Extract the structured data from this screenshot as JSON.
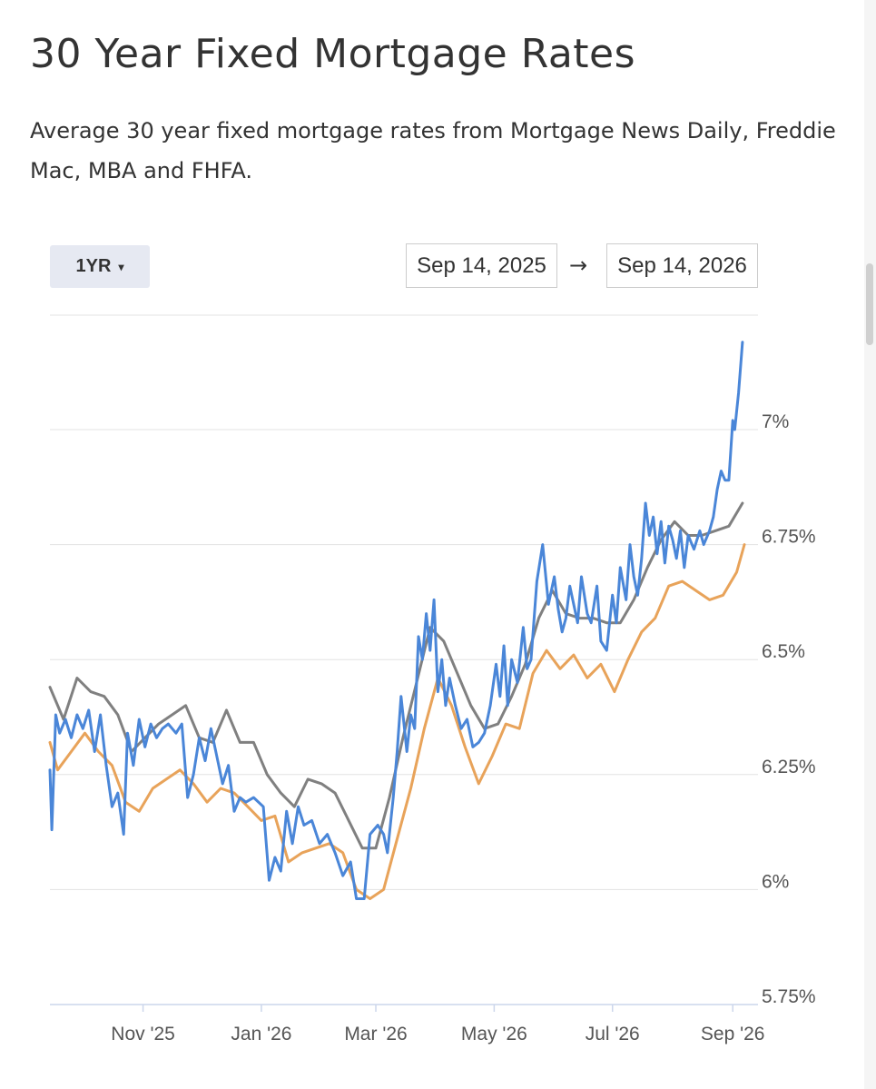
{
  "header": {
    "title": "30 Year Fixed Mortgage Rates",
    "subtitle": "Average 30 year fixed mortgage rates from Mortgage News Daily, Freddie Mac, MBA and FHFA."
  },
  "controls": {
    "range_label": "1YR",
    "range_caret": "▾",
    "date_from": "Sep 14, 2025",
    "date_arrow": "→",
    "date_to": "Sep 14, 2026"
  },
  "colors": {
    "mnd": "#4a86d8",
    "freddie": "#e8a35a",
    "mba": "#808080",
    "grid": "#e3e3e3",
    "axis": "#ccd6eb"
  },
  "chart_data": {
    "type": "line",
    "title": "30 Year Fixed Mortgage Rates",
    "xlabel": "",
    "ylabel": "",
    "x_range": [
      "2025-09-14",
      "2026-09-14"
    ],
    "ylim": [
      5.75,
      7.25
    ],
    "y_ticks": [
      5.75,
      6,
      6.25,
      6.5,
      6.75,
      7
    ],
    "y_tick_labels": [
      "5.75%",
      "6%",
      "6.25%",
      "6.5%",
      "6.75%",
      "7%"
    ],
    "x_ticks": [
      "2025-11-01",
      "2026-01-01",
      "2026-03-01",
      "2026-05-01",
      "2026-07-01",
      "2026-09-01"
    ],
    "x_tick_labels": [
      "Nov '25",
      "Jan '26",
      "Mar '26",
      "May '26",
      "Jul '26",
      "Sep '26"
    ],
    "grid": true,
    "legend": "none",
    "series": [
      {
        "color": "#4a86d8",
        "points": [
          [
            "2025-09-14",
            6.26
          ],
          [
            "2025-09-15",
            6.13
          ],
          [
            "2025-09-17",
            6.38
          ],
          [
            "2025-09-19",
            6.34
          ],
          [
            "2025-09-22",
            6.37
          ],
          [
            "2025-09-25",
            6.33
          ],
          [
            "2025-09-28",
            6.38
          ],
          [
            "2025-10-01",
            6.35
          ],
          [
            "2025-10-04",
            6.39
          ],
          [
            "2025-10-07",
            6.3
          ],
          [
            "2025-10-10",
            6.38
          ],
          [
            "2025-10-13",
            6.27
          ],
          [
            "2025-10-16",
            6.18
          ],
          [
            "2025-10-19",
            6.21
          ],
          [
            "2025-10-22",
            6.12
          ],
          [
            "2025-10-24",
            6.34
          ],
          [
            "2025-10-27",
            6.27
          ],
          [
            "2025-10-30",
            6.37
          ],
          [
            "2025-11-02",
            6.31
          ],
          [
            "2025-11-05",
            6.36
          ],
          [
            "2025-11-08",
            6.33
          ],
          [
            "2025-11-11",
            6.35
          ],
          [
            "2025-11-14",
            6.36
          ],
          [
            "2025-11-18",
            6.34
          ],
          [
            "2025-11-21",
            6.36
          ],
          [
            "2025-11-24",
            6.2
          ],
          [
            "2025-11-27",
            6.25
          ],
          [
            "2025-11-30",
            6.33
          ],
          [
            "2025-12-03",
            6.28
          ],
          [
            "2025-12-06",
            6.35
          ],
          [
            "2025-12-09",
            6.29
          ],
          [
            "2025-12-12",
            6.23
          ],
          [
            "2025-12-15",
            6.27
          ],
          [
            "2025-12-18",
            6.17
          ],
          [
            "2025-12-21",
            6.2
          ],
          [
            "2025-12-24",
            6.19
          ],
          [
            "2025-12-28",
            6.2
          ],
          [
            "2026-01-02",
            6.18
          ],
          [
            "2026-01-05",
            6.02
          ],
          [
            "2026-01-08",
            6.07
          ],
          [
            "2026-01-11",
            6.04
          ],
          [
            "2026-01-14",
            6.17
          ],
          [
            "2026-01-17",
            6.1
          ],
          [
            "2026-01-20",
            6.18
          ],
          [
            "2026-01-23",
            6.14
          ],
          [
            "2026-01-27",
            6.15
          ],
          [
            "2026-01-31",
            6.1
          ],
          [
            "2026-02-04",
            6.12
          ],
          [
            "2026-02-08",
            6.08
          ],
          [
            "2026-02-12",
            6.03
          ],
          [
            "2026-02-16",
            6.06
          ],
          [
            "2026-02-19",
            5.98
          ],
          [
            "2026-02-23",
            5.98
          ],
          [
            "2026-02-26",
            6.12
          ],
          [
            "2026-03-02",
            6.14
          ],
          [
            "2026-03-05",
            6.12
          ],
          [
            "2026-03-07",
            6.08
          ],
          [
            "2026-03-10",
            6.2
          ],
          [
            "2026-03-12",
            6.3
          ],
          [
            "2026-03-14",
            6.42
          ],
          [
            "2026-03-17",
            6.3
          ],
          [
            "2026-03-19",
            6.38
          ],
          [
            "2026-03-21",
            6.35
          ],
          [
            "2026-03-23",
            6.55
          ],
          [
            "2026-03-25",
            6.5
          ],
          [
            "2026-03-27",
            6.6
          ],
          [
            "2026-03-29",
            6.52
          ],
          [
            "2026-03-31",
            6.63
          ],
          [
            "2026-04-02",
            6.43
          ],
          [
            "2026-04-04",
            6.5
          ],
          [
            "2026-04-06",
            6.4
          ],
          [
            "2026-04-08",
            6.46
          ],
          [
            "2026-04-11",
            6.4
          ],
          [
            "2026-04-14",
            6.35
          ],
          [
            "2026-04-17",
            6.37
          ],
          [
            "2026-04-20",
            6.31
          ],
          [
            "2026-04-23",
            6.32
          ],
          [
            "2026-04-26",
            6.34
          ],
          [
            "2026-04-29",
            6.4
          ],
          [
            "2026-05-02",
            6.49
          ],
          [
            "2026-05-04",
            6.42
          ],
          [
            "2026-05-06",
            6.53
          ],
          [
            "2026-05-08",
            6.4
          ],
          [
            "2026-05-10",
            6.5
          ],
          [
            "2026-05-13",
            6.45
          ],
          [
            "2026-05-16",
            6.57
          ],
          [
            "2026-05-18",
            6.48
          ],
          [
            "2026-05-20",
            6.5
          ],
          [
            "2026-05-23",
            6.67
          ],
          [
            "2026-05-26",
            6.75
          ],
          [
            "2026-05-29",
            6.62
          ],
          [
            "2026-06-01",
            6.68
          ],
          [
            "2026-06-03",
            6.61
          ],
          [
            "2026-06-05",
            6.56
          ],
          [
            "2026-06-07",
            6.59
          ],
          [
            "2026-06-09",
            6.66
          ],
          [
            "2026-06-11",
            6.62
          ],
          [
            "2026-06-13",
            6.58
          ],
          [
            "2026-06-15",
            6.68
          ],
          [
            "2026-06-18",
            6.6
          ],
          [
            "2026-06-20",
            6.58
          ],
          [
            "2026-06-23",
            6.66
          ],
          [
            "2026-06-25",
            6.54
          ],
          [
            "2026-06-28",
            6.52
          ],
          [
            "2026-07-01",
            6.64
          ],
          [
            "2026-07-03",
            6.58
          ],
          [
            "2026-07-05",
            6.7
          ],
          [
            "2026-07-08",
            6.63
          ],
          [
            "2026-07-10",
            6.75
          ],
          [
            "2026-07-12",
            6.68
          ],
          [
            "2026-07-14",
            6.64
          ],
          [
            "2026-07-16",
            6.72
          ],
          [
            "2026-07-18",
            6.84
          ],
          [
            "2026-07-20",
            6.77
          ],
          [
            "2026-07-22",
            6.81
          ],
          [
            "2026-07-24",
            6.73
          ],
          [
            "2026-07-26",
            6.8
          ],
          [
            "2026-07-28",
            6.71
          ],
          [
            "2026-07-30",
            6.79
          ],
          [
            "2026-08-01",
            6.76
          ],
          [
            "2026-08-03",
            6.72
          ],
          [
            "2026-08-05",
            6.78
          ],
          [
            "2026-08-07",
            6.7
          ],
          [
            "2026-08-09",
            6.77
          ],
          [
            "2026-08-12",
            6.74
          ],
          [
            "2026-08-15",
            6.78
          ],
          [
            "2026-08-17",
            6.75
          ],
          [
            "2026-08-20",
            6.78
          ],
          [
            "2026-08-22",
            6.81
          ],
          [
            "2026-08-24",
            6.87
          ],
          [
            "2026-08-26",
            6.91
          ],
          [
            "2026-08-28",
            6.89
          ],
          [
            "2026-08-30",
            6.89
          ],
          [
            "2026-09-01",
            7.02
          ],
          [
            "2026-09-02",
            7.0
          ],
          [
            "2026-09-04",
            7.08
          ],
          [
            "2026-09-06",
            7.19
          ]
        ]
      },
      {
        "color": "#808080",
        "points": [
          [
            "2025-09-14",
            6.44
          ],
          [
            "2025-09-21",
            6.37
          ],
          [
            "2025-09-28",
            6.46
          ],
          [
            "2025-10-05",
            6.43
          ],
          [
            "2025-10-12",
            6.42
          ],
          [
            "2025-10-19",
            6.38
          ],
          [
            "2025-10-26",
            6.3
          ],
          [
            "2025-11-02",
            6.33
          ],
          [
            "2025-11-09",
            6.36
          ],
          [
            "2025-11-16",
            6.38
          ],
          [
            "2025-11-23",
            6.4
          ],
          [
            "2025-11-30",
            6.33
          ],
          [
            "2025-12-07",
            6.32
          ],
          [
            "2025-12-14",
            6.39
          ],
          [
            "2025-12-21",
            6.32
          ],
          [
            "2025-12-28",
            6.32
          ],
          [
            "2026-01-04",
            6.25
          ],
          [
            "2026-01-11",
            6.21
          ],
          [
            "2026-01-18",
            6.18
          ],
          [
            "2026-01-25",
            6.24
          ],
          [
            "2026-02-01",
            6.23
          ],
          [
            "2026-02-08",
            6.21
          ],
          [
            "2026-02-15",
            6.15
          ],
          [
            "2026-02-22",
            6.09
          ],
          [
            "2026-03-01",
            6.09
          ],
          [
            "2026-03-08",
            6.2
          ],
          [
            "2026-03-15",
            6.33
          ],
          [
            "2026-03-22",
            6.45
          ],
          [
            "2026-03-29",
            6.57
          ],
          [
            "2026-04-05",
            6.54
          ],
          [
            "2026-04-12",
            6.47
          ],
          [
            "2026-04-19",
            6.4
          ],
          [
            "2026-04-26",
            6.35
          ],
          [
            "2026-05-03",
            6.36
          ],
          [
            "2026-05-10",
            6.42
          ],
          [
            "2026-05-17",
            6.49
          ],
          [
            "2026-05-24",
            6.59
          ],
          [
            "2026-05-31",
            6.65
          ],
          [
            "2026-06-07",
            6.6
          ],
          [
            "2026-06-14",
            6.59
          ],
          [
            "2026-06-21",
            6.59
          ],
          [
            "2026-06-28",
            6.58
          ],
          [
            "2026-07-05",
            6.58
          ],
          [
            "2026-07-12",
            6.63
          ],
          [
            "2026-07-19",
            6.7
          ],
          [
            "2026-07-26",
            6.76
          ],
          [
            "2026-08-02",
            6.8
          ],
          [
            "2026-08-09",
            6.77
          ],
          [
            "2026-08-16",
            6.77
          ],
          [
            "2026-08-23",
            6.78
          ],
          [
            "2026-08-30",
            6.79
          ],
          [
            "2026-09-06",
            6.84
          ]
        ]
      },
      {
        "color": "#e8a35a",
        "points": [
          [
            "2025-09-14",
            6.32
          ],
          [
            "2025-09-18",
            6.26
          ],
          [
            "2025-09-25",
            6.3
          ],
          [
            "2025-10-02",
            6.34
          ],
          [
            "2025-10-09",
            6.3
          ],
          [
            "2025-10-16",
            6.27
          ],
          [
            "2025-10-23",
            6.19
          ],
          [
            "2025-10-30",
            6.17
          ],
          [
            "2025-11-06",
            6.22
          ],
          [
            "2025-11-13",
            6.24
          ],
          [
            "2025-11-20",
            6.26
          ],
          [
            "2025-11-27",
            6.23
          ],
          [
            "2025-12-04",
            6.19
          ],
          [
            "2025-12-11",
            6.22
          ],
          [
            "2025-12-18",
            6.21
          ],
          [
            "2025-12-25",
            6.18
          ],
          [
            "2026-01-01",
            6.15
          ],
          [
            "2026-01-08",
            6.16
          ],
          [
            "2026-01-15",
            6.06
          ],
          [
            "2026-01-22",
            6.08
          ],
          [
            "2026-01-29",
            6.09
          ],
          [
            "2026-02-05",
            6.1
          ],
          [
            "2026-02-12",
            6.08
          ],
          [
            "2026-02-19",
            6.0
          ],
          [
            "2026-02-26",
            5.98
          ],
          [
            "2026-03-05",
            6.0
          ],
          [
            "2026-03-12",
            6.11
          ],
          [
            "2026-03-19",
            6.22
          ],
          [
            "2026-03-26",
            6.35
          ],
          [
            "2026-04-02",
            6.46
          ],
          [
            "2026-04-09",
            6.4
          ],
          [
            "2026-04-16",
            6.31
          ],
          [
            "2026-04-23",
            6.23
          ],
          [
            "2026-04-30",
            6.29
          ],
          [
            "2026-05-07",
            6.36
          ],
          [
            "2026-05-14",
            6.35
          ],
          [
            "2026-05-21",
            6.47
          ],
          [
            "2026-05-28",
            6.52
          ],
          [
            "2026-06-04",
            6.48
          ],
          [
            "2026-06-11",
            6.51
          ],
          [
            "2026-06-18",
            6.46
          ],
          [
            "2026-06-25",
            6.49
          ],
          [
            "2026-07-02",
            6.43
          ],
          [
            "2026-07-09",
            6.5
          ],
          [
            "2026-07-16",
            6.56
          ],
          [
            "2026-07-23",
            6.59
          ],
          [
            "2026-07-30",
            6.66
          ],
          [
            "2026-08-06",
            6.67
          ],
          [
            "2026-08-13",
            6.65
          ],
          [
            "2026-08-20",
            6.63
          ],
          [
            "2026-08-27",
            6.64
          ],
          [
            "2026-09-03",
            6.69
          ],
          [
            "2026-09-07",
            6.75
          ]
        ]
      }
    ]
  }
}
